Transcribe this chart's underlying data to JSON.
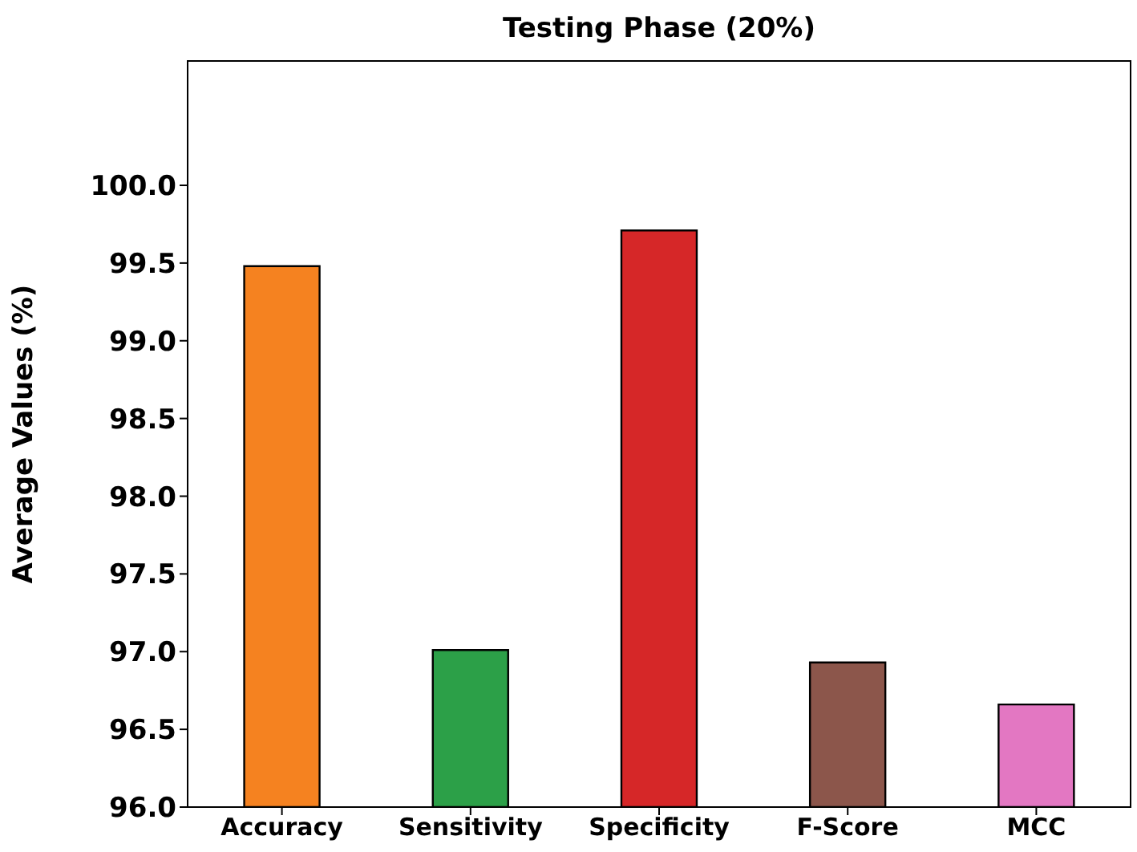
{
  "chart_data": {
    "type": "bar",
    "title": "Testing Phase (20%)",
    "ylabel": "Average Values (%)",
    "categories": [
      "Accuracy",
      "Sensitivity",
      "Specificity",
      "F-Score",
      "MCC"
    ],
    "values": [
      99.48,
      97.01,
      99.71,
      96.93,
      96.66
    ],
    "colors": [
      "#f58220",
      "#2ca048",
      "#d62728",
      "#8c564b",
      "#e377c2"
    ],
    "ylim": [
      96,
      100.8
    ],
    "yticks": [
      {
        "value": 96,
        "label": "96.0"
      },
      96.5,
      {
        "value": 97,
        "label": "97.0"
      },
      97.5,
      {
        "value": 98,
        "label": "98.0"
      },
      98.5,
      {
        "value": 99,
        "label": "99.0"
      },
      99.5,
      {
        "value": 100,
        "label": "100.0"
      }
    ],
    "grid": false
  }
}
